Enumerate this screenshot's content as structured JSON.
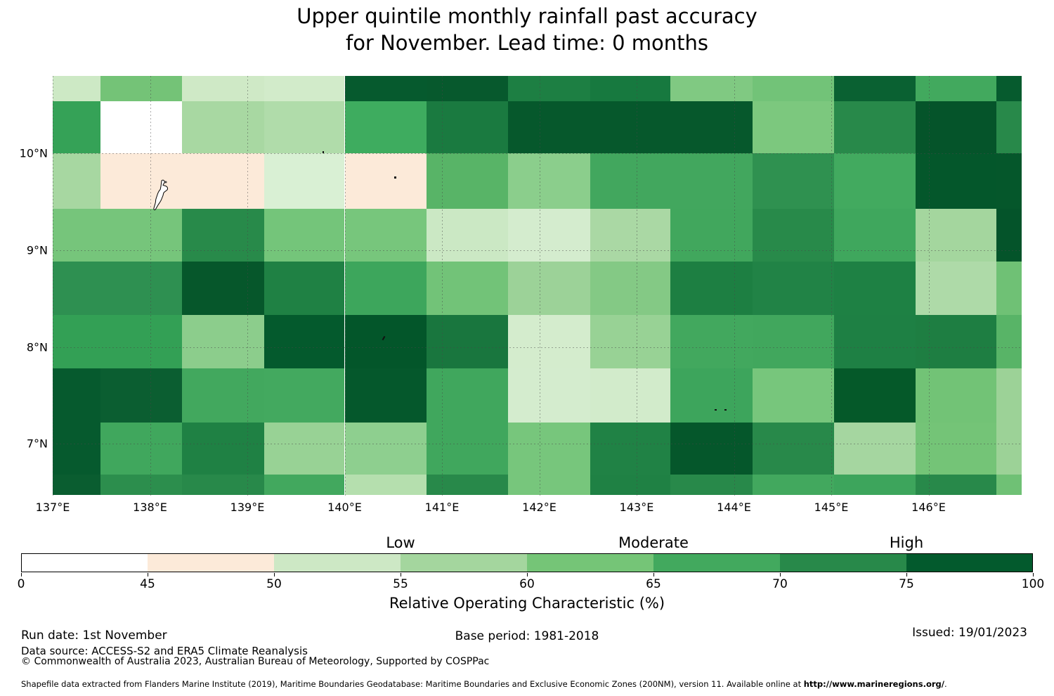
{
  "title": {
    "line1": "Upper quintile monthly rainfall past accuracy",
    "line2": "for November. Lead time: 0 months"
  },
  "footer": {
    "run_date": "Run date: 1st November",
    "base_period": "Base period: 1981-2018",
    "issued": "Issued: 19/01/2023",
    "data_source": "Data source: ACCESS-S2 and ERA5 Climate Reanalysis",
    "copyright": "© Commonwealth of Australia 2023, Australian Bureau of Meteorology, Supported by COSPPac",
    "shapefile_note": "Shapefile data extracted from Flanders Marine Institute (2019), Maritime Boundaries Geodatabase: Maritime Boundaries and Exclusive Economic Zones (200NM), version 11. Available online at ",
    "shapefile_url": "http://www.marineregions.org/",
    "shapefile_end": "."
  },
  "chart_data": {
    "type": "heatmap",
    "title": "Upper quintile monthly rainfall past accuracy for November. Lead time: 0 months",
    "xlabel": "",
    "ylabel": "",
    "x_ticks": [
      {
        "label": "137°E",
        "lon": 137
      },
      {
        "label": "138°E",
        "lon": 138
      },
      {
        "label": "139°E",
        "lon": 139
      },
      {
        "label": "140°E",
        "lon": 140
      },
      {
        "label": "141°E",
        "lon": 141
      },
      {
        "label": "142°E",
        "lon": 142
      },
      {
        "label": "143°E",
        "lon": 143
      },
      {
        "label": "144°E",
        "lon": 144
      },
      {
        "label": "145°E",
        "lon": 145
      },
      {
        "label": "146°E",
        "lon": 146
      }
    ],
    "y_ticks": [
      {
        "label": "10°N",
        "lat": 10
      },
      {
        "label": "9°N",
        "lat": 9
      },
      {
        "label": "8°N",
        "lat": 8
      },
      {
        "label": "7°N",
        "lat": 7
      }
    ],
    "grid": true,
    "lon_edges": [
      137.0,
      137.49,
      138.33,
      139.17,
      140.0,
      140.84,
      141.68,
      142.52,
      143.35,
      144.19,
      145.03,
      145.87,
      146.7,
      146.96
    ],
    "lat_edges": [
      10.8,
      10.54,
      10.0,
      9.43,
      8.88,
      8.33,
      7.78,
      7.22,
      6.68,
      6.47
    ],
    "cell_colors": [
      [
        "#cde9c5",
        "#74c377",
        "#cfe9c6",
        "#d2ebca",
        "#065a2e",
        "#07592d",
        "#1d7f43",
        "#17793f",
        "#80c982",
        "#72c378",
        "#0a6132",
        "#42a95e",
        "#065b2e"
      ],
      [
        "#35a257",
        "#ffffff",
        "#a8d8a2",
        "#b0dcaa",
        "#3eac5f",
        "#1a7a40",
        "#06582c",
        "#06582c",
        "#06582c",
        "#7cc87e",
        "#28894a",
        "#05542a",
        "#28894a"
      ],
      [
        "#a7d7a1",
        "#fcead9",
        "#fcead9",
        "#d9f0d4",
        "#fcead9",
        "#58b467",
        "#8bce8c",
        "#42a75e",
        "#42a75e",
        "#2f9150",
        "#42aa5f",
        "#04572b",
        "#05572b"
      ],
      [
        "#76c57b",
        "#76c57b",
        "#288a4a",
        "#74c57a",
        "#77c67c",
        "#cbe8c4",
        "#d4ecce",
        "#aad8a4",
        "#41a75d",
        "#288a4a",
        "#3fa75d",
        "#a4d69e",
        "#04542a"
      ],
      [
        "#2e9051",
        "#2e9051",
        "#06572b",
        "#1f8144",
        "#3da65c",
        "#72c378",
        "#9cd298",
        "#84c985",
        "#1d7f42",
        "#218346",
        "#1e8144",
        "#aedaa8",
        "#6fc175"
      ],
      [
        "#33a055",
        "#33a055",
        "#8ccd8c",
        "#045a2d",
        "#03562a",
        "#19763e",
        "#d4eccd",
        "#98d295",
        "#42a85e",
        "#41a75d",
        "#1e8044",
        "#1e7e42",
        "#58b467"
      ],
      [
        "#065a2e",
        "#0b5e31",
        "#42a85e",
        "#43a95f",
        "#05582c",
        "#40a75d",
        "#d4ecce",
        "#d2ebcb",
        "#3da55c",
        "#77c67c",
        "#055929",
        "#72c376",
        "#9cd297"
      ],
      [
        "#065a2e",
        "#40a75d",
        "#1f8144",
        "#98d295",
        "#8ecf8f",
        "#40a75d",
        "#77c67c",
        "#208245",
        "#05572b",
        "#28894a",
        "#a5d6a0",
        "#74c477",
        "#9cd297"
      ],
      [
        "#0a5d30",
        "#2c8e4d",
        "#28894a",
        "#42a85e",
        "#b5dfae",
        "#28894a",
        "#77c67c",
        "#1f8144",
        "#28894a",
        "#42a85e",
        "#3da55c",
        "#28894a",
        "#6fc175"
      ]
    ],
    "cell_values_est_roc_pct": [
      [
        53,
        63,
        52,
        52,
        80,
        80,
        74,
        75,
        61,
        63,
        78,
        67,
        80
      ],
      [
        68,
        40,
        57,
        56,
        67,
        75,
        81,
        81,
        81,
        62,
        72,
        83,
        72
      ],
      [
        57,
        47,
        47,
        51,
        47,
        65,
        60,
        67,
        67,
        70,
        67,
        82,
        82
      ],
      [
        62,
        62,
        72,
        63,
        62,
        53,
        51,
        56,
        67,
        72,
        68,
        57,
        83
      ],
      [
        70,
        70,
        81,
        74,
        68,
        63,
        58,
        61,
        74,
        73,
        74,
        56,
        63
      ],
      [
        68,
        68,
        60,
        80,
        82,
        76,
        51,
        58,
        67,
        67,
        74,
        74,
        65
      ],
      [
        80,
        79,
        67,
        67,
        81,
        67,
        51,
        52,
        68,
        62,
        81,
        63,
        58
      ],
      [
        80,
        67,
        74,
        58,
        59,
        67,
        62,
        73,
        81,
        72,
        57,
        63,
        58
      ],
      [
        79,
        71,
        72,
        67,
        55,
        72,
        62,
        74,
        72,
        67,
        68,
        72,
        63
      ]
    ],
    "colorbar": {
      "label": "Relative Operating Characteristic (%)",
      "boundaries": [
        0,
        45,
        50,
        55,
        60,
        65,
        70,
        75,
        100
      ],
      "colors": [
        "#ffffff",
        "#fcead9",
        "#cde8c5",
        "#a4d69e",
        "#75c577",
        "#42a95e",
        "#28894a",
        "#035a2d"
      ],
      "annotations": [
        {
          "label": "Low",
          "at": 55
        },
        {
          "label": "Moderate",
          "at": 65
        },
        {
          "label": "High",
          "at": 75
        }
      ]
    },
    "map_features": {
      "island_label": "palau-island-outline",
      "island_center": {
        "lon": 138.13,
        "lat": 9.54
      },
      "point_marks": [
        {
          "lon": 139.77,
          "lat": 10.02,
          "w": 2.5,
          "h": 2.5,
          "rot": 0
        },
        {
          "lon": 140.51,
          "lat": 9.76,
          "w": 2.5,
          "h": 2.5,
          "rot": 0
        },
        {
          "lon": 140.39,
          "lat": 8.11,
          "w": 2,
          "h": 6,
          "rot": 30
        },
        {
          "lon": 143.8,
          "lat": 7.36,
          "w": 3,
          "h": 2.5,
          "rot": 0
        },
        {
          "lon": 143.9,
          "lat": 7.36,
          "w": 3,
          "h": 2.5,
          "rot": 0
        }
      ]
    }
  }
}
